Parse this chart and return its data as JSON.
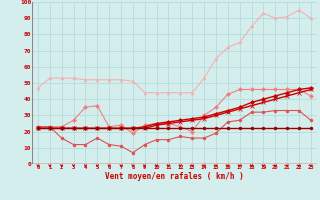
{
  "x": [
    0,
    1,
    2,
    3,
    4,
    5,
    6,
    7,
    8,
    9,
    10,
    11,
    12,
    13,
    14,
    15,
    16,
    17,
    18,
    19,
    20,
    21,
    22,
    23
  ],
  "series": [
    {
      "name": "line1_lightest",
      "color": "#f5b0b0",
      "lw": 0.8,
      "marker": "^",
      "markersize": 2.0,
      "y": [
        47,
        53,
        53,
        53,
        52,
        52,
        52,
        52,
        51,
        44,
        44,
        44,
        44,
        44,
        53,
        65,
        72,
        75,
        85,
        93,
        90,
        91,
        95,
        90
      ]
    },
    {
      "name": "line2_light",
      "color": "#f08080",
      "lw": 0.8,
      "marker": "D",
      "markersize": 2.0,
      "y": [
        23,
        23,
        23,
        27,
        35,
        36,
        23,
        24,
        19,
        24,
        25,
        25,
        23,
        20,
        30,
        35,
        43,
        46,
        46,
        46,
        46,
        46,
        46,
        42
      ]
    },
    {
      "name": "line3_medium",
      "color": "#e05050",
      "lw": 0.8,
      "marker": "o",
      "markersize": 2.0,
      "y": [
        23,
        23,
        16,
        12,
        12,
        16,
        12,
        11,
        7,
        12,
        15,
        15,
        17,
        16,
        16,
        19,
        26,
        27,
        32,
        32,
        33,
        33,
        33,
        27
      ]
    },
    {
      "name": "line4_dark",
      "color": "#cc0000",
      "lw": 1.0,
      "marker": "D",
      "markersize": 2.0,
      "y": [
        22,
        22,
        22,
        22,
        22,
        22,
        22,
        22,
        22,
        23,
        25,
        26,
        27,
        28,
        29,
        31,
        33,
        35,
        38,
        40,
        42,
        44,
        46,
        47
      ]
    },
    {
      "name": "line5_dark2",
      "color": "#cc0000",
      "lw": 1.0,
      "marker": "x",
      "markersize": 2.5,
      "y": [
        22,
        22,
        22,
        22,
        22,
        22,
        22,
        22,
        22,
        22,
        24,
        25,
        26,
        27,
        28,
        30,
        32,
        34,
        36,
        38,
        40,
        42,
        44,
        46
      ]
    },
    {
      "name": "line6_darkest",
      "color": "#990000",
      "lw": 1.0,
      "marker": "o",
      "markersize": 2.0,
      "y": [
        22,
        22,
        22,
        22,
        22,
        22,
        22,
        22,
        22,
        22,
        22,
        22,
        22,
        22,
        22,
        22,
        22,
        22,
        22,
        22,
        22,
        22,
        22,
        22
      ]
    }
  ],
  "xlabel": "Vent moyen/en rafales ( km/h )",
  "xlim": [
    -0.5,
    23.5
  ],
  "ylim": [
    0,
    100
  ],
  "yticks": [
    0,
    10,
    20,
    30,
    40,
    50,
    60,
    70,
    80,
    90,
    100
  ],
  "xticks": [
    0,
    1,
    2,
    3,
    4,
    5,
    6,
    7,
    8,
    9,
    10,
    11,
    12,
    13,
    14,
    15,
    16,
    17,
    18,
    19,
    20,
    21,
    22,
    23
  ],
  "background_color": "#d4eeee",
  "grid_color": "#b0d8d8",
  "tick_color": "#cc0000",
  "label_color": "#cc0000"
}
